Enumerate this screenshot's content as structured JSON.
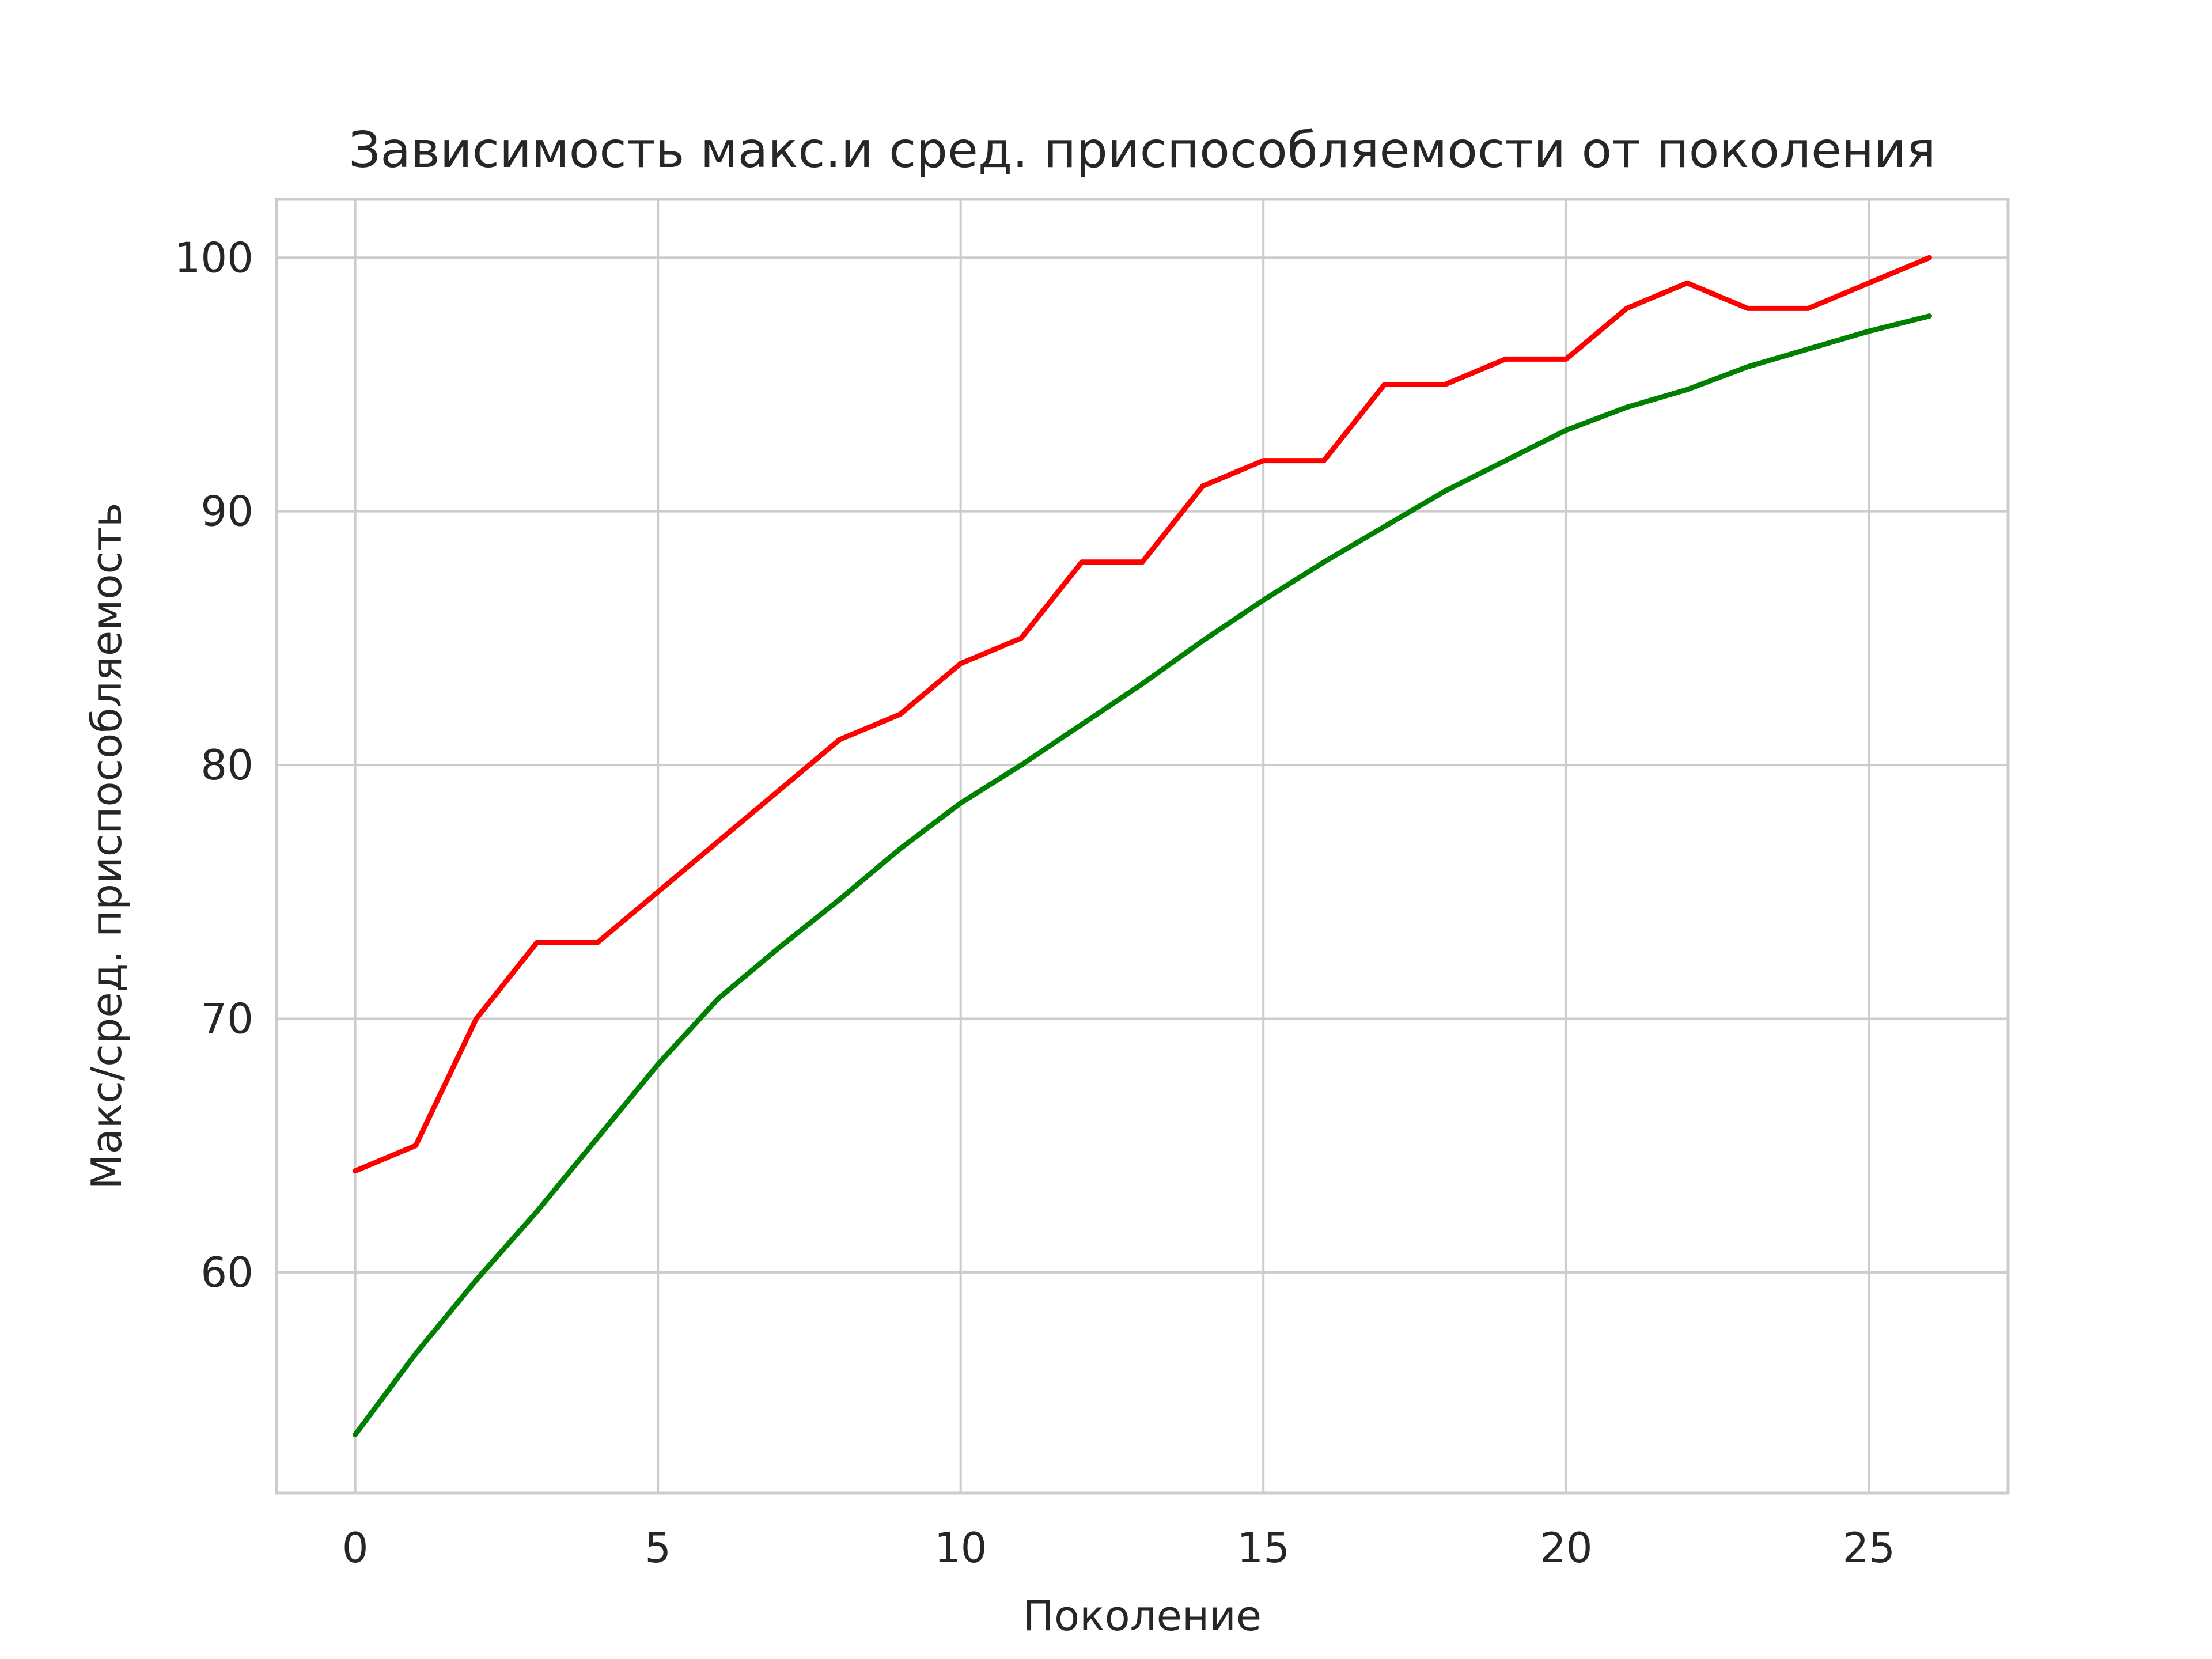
{
  "chart_data": {
    "type": "line",
    "title": "Зависимость макс.и сред. приспособляемости от поколения",
    "xlabel": "Поколение",
    "ylabel": "Макс/сред. приспособляемость",
    "xlim": [
      -1.3,
      27.3
    ],
    "ylim": [
      51.3,
      102.3
    ],
    "xticks": [
      0,
      5,
      10,
      15,
      20,
      25
    ],
    "yticks": [
      60,
      70,
      80,
      90,
      100
    ],
    "grid": true,
    "x": [
      0,
      1,
      2,
      3,
      4,
      5,
      6,
      7,
      8,
      9,
      10,
      11,
      12,
      13,
      14,
      15,
      16,
      17,
      18,
      19,
      20,
      21,
      22,
      23,
      24,
      25,
      26
    ],
    "series": [
      {
        "color": "#ff0000",
        "values": [
          64,
          65,
          70,
          73,
          73,
          75,
          77,
          79,
          81,
          82,
          84,
          85,
          88,
          88,
          91,
          92,
          92,
          95,
          95,
          96,
          96,
          98,
          99,
          98,
          98,
          99,
          100
        ]
      },
      {
        "color": "#008000",
        "values": [
          53.6,
          56.8,
          59.7,
          62.4,
          65.3,
          68.2,
          70.8,
          72.8,
          74.7,
          76.7,
          78.5,
          80.0,
          81.6,
          83.2,
          84.9,
          86.5,
          88.0,
          89.4,
          90.8,
          92.0,
          93.2,
          94.1,
          94.8,
          95.7,
          96.4,
          97.1,
          97.7
        ]
      }
    ]
  }
}
